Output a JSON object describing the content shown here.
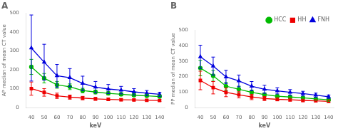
{
  "chart_data": [
    {
      "type": "line",
      "title": "A",
      "xlabel": "keV",
      "ylabel": "AP median of mean CT value",
      "x": [
        40,
        50,
        60,
        70,
        80,
        90,
        100,
        110,
        120,
        130,
        140
      ],
      "xlim": [
        36,
        144
      ],
      "xticks": [
        40,
        50,
        60,
        70,
        80,
        90,
        100,
        110,
        120,
        130,
        140
      ],
      "ylim": [
        0,
        500
      ],
      "yticks": [
        0,
        100,
        200,
        300,
        400,
        500
      ],
      "grid": false,
      "series": [
        {
          "name": "HCC",
          "color": "#00bb00",
          "marker": "circle",
          "values": [
            215,
            155,
            120,
            110,
            90,
            82,
            75,
            70,
            65,
            62,
            58
          ],
          "errors": [
            40,
            25,
            18,
            15,
            12,
            10,
            9,
            8,
            7,
            6,
            6
          ]
        },
        {
          "name": "HH",
          "color": "#ee0000",
          "marker": "square",
          "values": [
            100,
            80,
            62,
            55,
            50,
            46,
            43,
            41,
            40,
            38,
            37
          ],
          "errors": [
            35,
            20,
            14,
            11,
            9,
            8,
            7,
            6,
            5,
            5,
            5
          ]
        },
        {
          "name": "FNH",
          "color": "#0000dd",
          "marker": "triangle",
          "values": [
            315,
            240,
            168,
            158,
            128,
            108,
            98,
            92,
            83,
            76,
            70
          ],
          "errors": [
            175,
            95,
            60,
            48,
            38,
            30,
            24,
            20,
            17,
            14,
            11
          ]
        }
      ]
    },
    {
      "type": "line",
      "title": "B",
      "xlabel": "keV",
      "ylabel": "PP median of mean CT value",
      "x": [
        40,
        50,
        60,
        70,
        80,
        90,
        100,
        110,
        120,
        130,
        140
      ],
      "xlim": [
        36,
        144
      ],
      "xticks": [
        40,
        50,
        60,
        70,
        80,
        90,
        100,
        110,
        120,
        130,
        140
      ],
      "ylim": [
        0,
        500
      ],
      "yticks": [
        0,
        100,
        200,
        300,
        400,
        500
      ],
      "grid": false,
      "legend": "upper right",
      "series": [
        {
          "name": "HCC",
          "color": "#00bb00",
          "marker": "circle",
          "values": [
            255,
            205,
            138,
            118,
            98,
            83,
            73,
            68,
            63,
            56,
            50
          ],
          "errors": [
            50,
            35,
            25,
            20,
            15,
            12,
            10,
            9,
            8,
            7,
            7
          ]
        },
        {
          "name": "HH",
          "color": "#ee0000",
          "marker": "square",
          "values": [
            175,
            128,
            98,
            82,
            68,
            58,
            53,
            50,
            46,
            43,
            40
          ],
          "errors": [
            60,
            40,
            28,
            20,
            17,
            13,
            10,
            9,
            8,
            7,
            7
          ]
        },
        {
          "name": "FNH",
          "color": "#0000dd",
          "marker": "triangle",
          "values": [
            328,
            268,
            198,
            172,
            138,
            118,
            108,
            98,
            90,
            80,
            70
          ],
          "errors": [
            75,
            58,
            43,
            38,
            30,
            26,
            20,
            18,
            15,
            13,
            11
          ]
        }
      ]
    }
  ]
}
